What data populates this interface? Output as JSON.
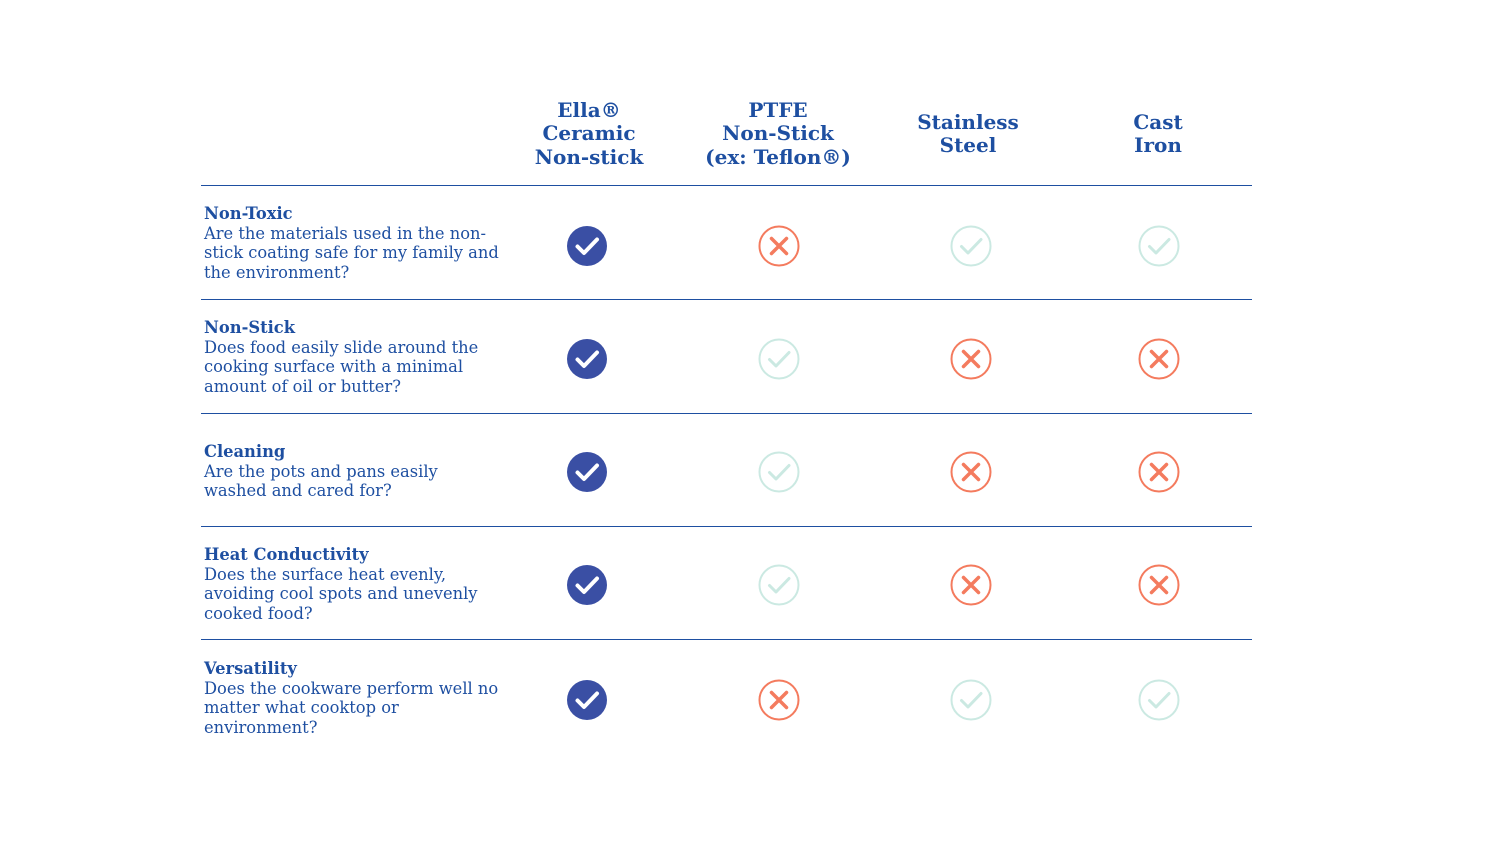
{
  "columns": [
    "Ella®\nCeramic\nNon-stick",
    "PTFE\nNon-Stick\n(ex: Teflon®)",
    "Stainless\nSteel",
    "Cast\nIron"
  ],
  "rows": [
    {
      "title": "Non-Toxic",
      "description": "Are the materials used in the non-stick coating safe for my family and the environment?",
      "values": [
        "yes-strong",
        "no",
        "yes-light",
        "yes-light"
      ]
    },
    {
      "title": "Non-Stick",
      "description": "Does food easily slide around the cooking surface with a minimal amount of oil or butter?",
      "values": [
        "yes-strong",
        "yes-light",
        "no",
        "no"
      ]
    },
    {
      "title": "Cleaning",
      "description": "Are the pots and pans easily washed and cared for?",
      "values": [
        "yes-strong",
        "yes-light",
        "no",
        "no"
      ]
    },
    {
      "title": "Heat Conductivity",
      "description": "Does the surface heat evenly, avoiding cool spots and unevenly cooked food?",
      "values": [
        "yes-strong",
        "yes-light",
        "no",
        "no"
      ]
    },
    {
      "title": "Versatility",
      "description": "Does the cookware perform well no matter what cooktop or environment?",
      "values": [
        "yes-strong",
        "no",
        "yes-light",
        "yes-light"
      ]
    }
  ],
  "icons": {
    "yes-strong": "check-circle-filled-icon",
    "yes-light": "check-circle-outline-icon",
    "no": "x-circle-icon"
  },
  "colors": {
    "text": "#1e4fa1",
    "check_strong": "#3a4fa4",
    "check_light": "#cbe9e2",
    "cross": "#f47b5e"
  }
}
